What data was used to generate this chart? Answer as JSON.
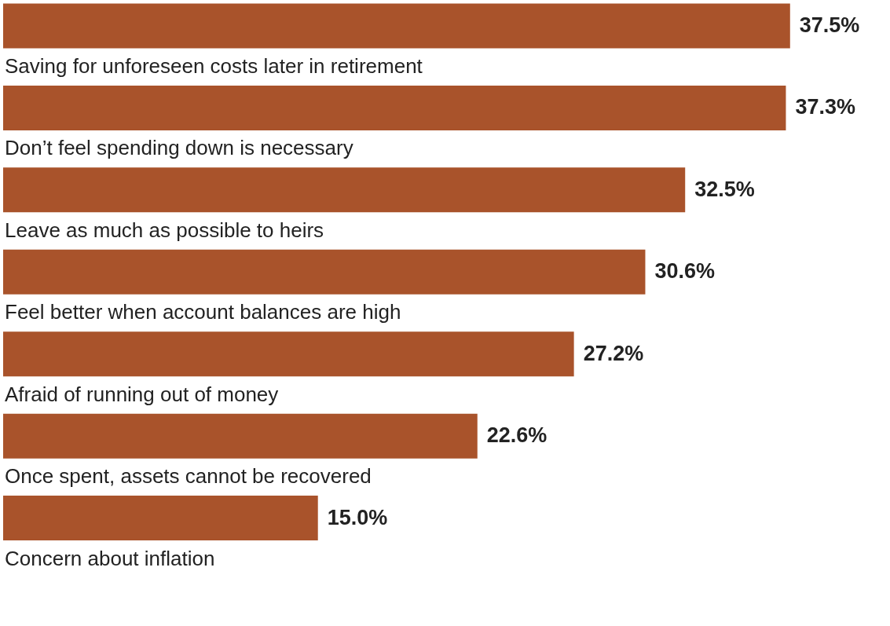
{
  "chart_data": {
    "type": "bar",
    "orientation": "horizontal",
    "categories": [
      "Saving for unforeseen costs later in retirement",
      "Don’t feel spending down is necessary",
      "Leave as much as possible to heirs",
      "Feel better when account balances are high",
      "Afraid of running out of money",
      "Once spent, assets cannot be recovered",
      "Concern about inflation"
    ],
    "values": [
      37.5,
      37.3,
      32.5,
      30.6,
      27.2,
      22.6,
      15.0
    ],
    "value_labels": [
      "37.5%",
      "37.3%",
      "32.5%",
      "30.6%",
      "27.2%",
      "22.6%",
      "15.0%"
    ],
    "color": "#a9532b"
  }
}
